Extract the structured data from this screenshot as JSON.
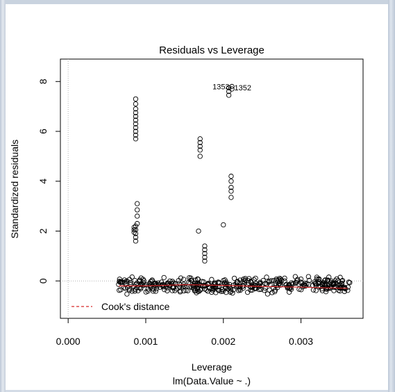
{
  "chart_data": {
    "type": "scatter",
    "title": "Residuals vs Leverage",
    "xlabel": "Leverage",
    "subtitle": "lm(Data.Value ~ .)",
    "ylabel": "Standardized residuals",
    "xlim": [
      -0.0001,
      0.0038
    ],
    "ylim": [
      -1.5,
      8.9
    ],
    "x_ticks": [
      "0.000",
      "0.001",
      "0.002",
      "0.003"
    ],
    "x_tick_values": [
      0.0,
      0.001,
      0.002,
      0.003
    ],
    "y_ticks": [
      "0",
      "2",
      "4",
      "6",
      "8"
    ],
    "y_tick_values": [
      0,
      2,
      4,
      6,
      8
    ],
    "legend": {
      "label": "Cook's distance",
      "placement": "bottom-left",
      "line_color": "#d62728",
      "line_style": "dashed"
    },
    "point_labels": [
      {
        "text": "1353",
        "x": 0.00197,
        "y": 7.8
      },
      {
        "text": "1352",
        "x": 0.00225,
        "y": 7.75
      }
    ],
    "reference_lines": {
      "h": 0,
      "v": 0,
      "style": "dotted",
      "color": "#b0b0b0"
    },
    "smoother": {
      "color": "#d62728",
      "x": [
        0.00065,
        0.001,
        0.0015,
        0.002,
        0.0025,
        0.003,
        0.0036
      ],
      "y": [
        -0.2,
        -0.2,
        -0.15,
        -0.18,
        -0.22,
        -0.25,
        -0.3
      ]
    },
    "outlier_clusters": [
      {
        "x": 0.00087,
        "y": [
          5.7,
          5.85,
          6.0,
          6.15,
          6.3,
          6.45,
          6.6,
          6.75,
          6.9,
          7.1,
          7.3
        ]
      },
      {
        "x": 0.00089,
        "y": [
          2.3,
          2.6,
          2.85,
          3.1
        ]
      },
      {
        "x": 0.00087,
        "y": [
          1.6,
          1.75,
          1.9,
          2.05,
          2.2
        ]
      },
      {
        "x": 0.00085,
        "y": [
          1.95,
          2.05,
          2.15
        ]
      },
      {
        "x": 0.0017,
        "y": [
          5.0,
          5.25,
          5.4,
          5.55,
          5.7
        ]
      },
      {
        "x": 0.00168,
        "y": [
          2.0
        ]
      },
      {
        "x": 0.00176,
        "y": [
          0.8,
          0.95,
          1.1,
          1.25,
          1.4
        ]
      },
      {
        "x": 0.002,
        "y": [
          2.25
        ]
      },
      {
        "x": 0.0021,
        "y": [
          3.35,
          3.6,
          3.75,
          4.0,
          4.2
        ]
      },
      {
        "x": 0.00207,
        "y": [
          7.45,
          7.6,
          7.75
        ]
      },
      {
        "x": 0.00211,
        "y": [
          7.7,
          7.8
        ]
      }
    ],
    "bulk": {
      "x_range": [
        0.00065,
        0.00365
      ],
      "y_range": [
        -0.55,
        0.2
      ],
      "count": 420
    }
  }
}
